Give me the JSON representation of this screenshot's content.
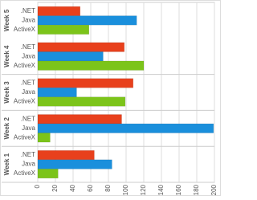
{
  "chart_data": {
    "type": "hbar",
    "categories": [
      "Week 1",
      "Week 2",
      "Week 3",
      "Week 4",
      "Week 5"
    ],
    "series": [
      {
        "name": ".NET",
        "color": "#e8401c",
        "values": [
          64,
          95,
          108,
          98,
          48
        ]
      },
      {
        "name": "Java",
        "color": "#1a8fdc",
        "values": [
          84,
          199,
          44,
          74,
          112
        ]
      },
      {
        "name": "ActiveX",
        "color": "#7cc41a",
        "values": [
          23,
          14,
          99,
          120,
          58
        ]
      }
    ],
    "xlim": [
      0,
      200
    ],
    "xticks": [
      0,
      20,
      40,
      60,
      80,
      100,
      120,
      140,
      160,
      180,
      200
    ],
    "grid": true
  }
}
